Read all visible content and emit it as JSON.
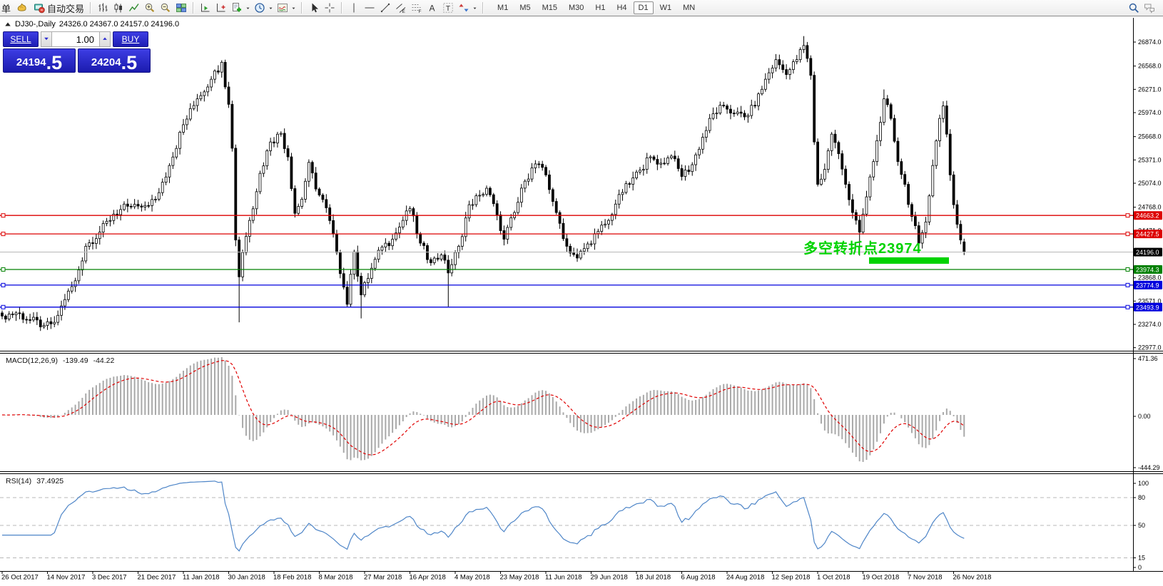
{
  "toolbar": {
    "left_label": "单",
    "autotrade_label": "自动交易",
    "timeframes": [
      "M1",
      "M5",
      "M15",
      "M30",
      "H1",
      "H4",
      "D1",
      "W1",
      "MN"
    ],
    "active_timeframe": "D1"
  },
  "chart": {
    "title_symbol": "DJ30-,Daily",
    "title_ohlc": "24326.0 24367.0 24157.0 24196.0"
  },
  "trade_panel": {
    "sell_label": "SELL",
    "buy_label": "BUY",
    "volume": "1.00",
    "sell_price_main": "24194",
    "sell_price_big": ".5",
    "buy_price_main": "24204",
    "buy_price_big": ".5"
  },
  "annotation": {
    "text": "多空转折点23974",
    "color": "#00d300"
  },
  "chart_data": {
    "type": "candlestick",
    "symbol": "DJ30-",
    "timeframe": "Daily",
    "title_open": 24326.0,
    "title_high": 24367.0,
    "title_low": 24157.0,
    "title_close": 24196.0,
    "price_axis_ticks": [
      "26874.0",
      "26568.0",
      "26271.0",
      "25974.0",
      "25668.0",
      "25371.0",
      "25074.0",
      "24768.0",
      "24471.0",
      "24174.0",
      "23868.0",
      "23571.0",
      "23274.0",
      "22977.0"
    ],
    "date_ticks": [
      "26 Oct 2017",
      "14 Nov 2017",
      "3 Dec 2017",
      "21 Dec 2017",
      "11 Jan 2018",
      "30 Jan 2018",
      "18 Feb 2018",
      "8 Mar 2018",
      "27 Mar 2018",
      "16 Apr 2018",
      "4 May 2018",
      "23 May 2018",
      "11 Jun 2018",
      "29 Jun 2018",
      "18 Jul 2018",
      "6 Aug 2018",
      "24 Aug 2018",
      "12 Sep 2018",
      "1 Oct 2018",
      "19 Oct 2018",
      "7 Nov 2018",
      "26 Nov 2018"
    ],
    "hlines": [
      {
        "price": 24663.2,
        "label": "24663.2",
        "color": "#dd0000",
        "role": "resistance"
      },
      {
        "price": 24427.5,
        "label": "24427.5",
        "color": "#dd0000",
        "role": "resistance"
      },
      {
        "price": 23974.3,
        "label": "23974.3",
        "color": "#008000",
        "role": "pivot"
      },
      {
        "price": 23774.9,
        "label": "23774.9",
        "color": "#0000dd",
        "role": "support"
      },
      {
        "price": 23493.9,
        "label": "23493.9",
        "color": "#0000dd",
        "role": "support"
      }
    ],
    "current_price_line": {
      "price": 24196.0,
      "label": "24196.0",
      "line_color": "#bdbdbd",
      "badge_color": "#000000"
    },
    "candle_count": 277,
    "anchors": [
      [
        0,
        23380
      ],
      [
        4,
        23420
      ],
      [
        8,
        23330
      ],
      [
        12,
        23260
      ],
      [
        15,
        23300
      ],
      [
        18,
        23590
      ],
      [
        21,
        23830
      ],
      [
        24,
        24270
      ],
      [
        28,
        24450
      ],
      [
        32,
        24680
      ],
      [
        36,
        24780
      ],
      [
        40,
        24770
      ],
      [
        44,
        24870
      ],
      [
        48,
        25300
      ],
      [
        52,
        25820
      ],
      [
        56,
        26150
      ],
      [
        60,
        26400
      ],
      [
        63,
        26616
      ],
      [
        65,
        26080
      ],
      [
        66,
        25520
      ],
      [
        67,
        24350
      ],
      [
        68,
        23880
      ],
      [
        69,
        24190
      ],
      [
        71,
        24600
      ],
      [
        74,
        25200
      ],
      [
        77,
        25600
      ],
      [
        80,
        25710
      ],
      [
        82,
        25410
      ],
      [
        84,
        24690
      ],
      [
        86,
        24870
      ],
      [
        88,
        25340
      ],
      [
        90,
        25000
      ],
      [
        93,
        24760
      ],
      [
        96,
        24190
      ],
      [
        99,
        23530
      ],
      [
        101,
        24200
      ],
      [
        103,
        23650
      ],
      [
        106,
        23990
      ],
      [
        109,
        24260
      ],
      [
        112,
        24360
      ],
      [
        115,
        24600
      ],
      [
        117,
        24750
      ],
      [
        120,
        24310
      ],
      [
        123,
        24060
      ],
      [
        126,
        24160
      ],
      [
        128,
        23930
      ],
      [
        131,
        24270
      ],
      [
        134,
        24800
      ],
      [
        137,
        24920
      ],
      [
        139,
        25010
      ],
      [
        142,
        24670
      ],
      [
        144,
        24360
      ],
      [
        147,
        24700
      ],
      [
        150,
        25100
      ],
      [
        153,
        25320
      ],
      [
        156,
        25180
      ],
      [
        159,
        24700
      ],
      [
        162,
        24270
      ],
      [
        165,
        24120
      ],
      [
        168,
        24300
      ],
      [
        171,
        24460
      ],
      [
        174,
        24600
      ],
      [
        177,
        24930
      ],
      [
        180,
        25060
      ],
      [
        183,
        25240
      ],
      [
        186,
        25410
      ],
      [
        189,
        25330
      ],
      [
        192,
        25420
      ],
      [
        195,
        25160
      ],
      [
        198,
        25310
      ],
      [
        201,
        25660
      ],
      [
        204,
        25960
      ],
      [
        207,
        26060
      ],
      [
        210,
        25960
      ],
      [
        213,
        25920
      ],
      [
        216,
        26060
      ],
      [
        219,
        26400
      ],
      [
        222,
        26650
      ],
      [
        225,
        26460
      ],
      [
        228,
        26650
      ],
      [
        230,
        26830
      ],
      [
        232,
        26450
      ],
      [
        233,
        25600
      ],
      [
        234,
        25060
      ],
      [
        236,
        25250
      ],
      [
        238,
        25700
      ],
      [
        240,
        25450
      ],
      [
        242,
        25060
      ],
      [
        244,
        24700
      ],
      [
        246,
        24450
      ],
      [
        248,
        24900
      ],
      [
        250,
        25350
      ],
      [
        252,
        25850
      ],
      [
        253,
        26150
      ],
      [
        255,
        25900
      ],
      [
        257,
        25350
      ],
      [
        259,
        25060
      ],
      [
        261,
        24650
      ],
      [
        263,
        24310
      ],
      [
        265,
        24580
      ],
      [
        267,
        25300
      ],
      [
        269,
        25900
      ],
      [
        270,
        26060
      ],
      [
        271,
        25700
      ],
      [
        272,
        25180
      ],
      [
        273,
        24800
      ],
      [
        274,
        24550
      ],
      [
        275,
        24350
      ],
      [
        276,
        24196
      ]
    ],
    "wick_overrides": {
      "68": {
        "low": 23300
      },
      "103": {
        "low": 23350
      },
      "128": {
        "low": 23500
      },
      "230": {
        "high": 26950
      },
      "246": {
        "low": 24150
      },
      "253": {
        "high": 26270
      },
      "276": {
        "open": 24326,
        "high": 24367,
        "low": 24157,
        "close": 24196
      }
    },
    "macd": {
      "label": "MACD(12,26,9)",
      "value": "-139.49",
      "signal_value": "-44.22",
      "axis": [
        "471.36",
        "0.00",
        "-444.29"
      ],
      "histogram_color": "#a9a9a9",
      "signal_color": "#e00000"
    },
    "rsi": {
      "label": "RSI(14)",
      "value": "37.4925",
      "axis": [
        "100",
        "80",
        "50",
        "15",
        "0"
      ],
      "levels": [
        80,
        50,
        15
      ],
      "line_color": "#4f86c8"
    }
  }
}
